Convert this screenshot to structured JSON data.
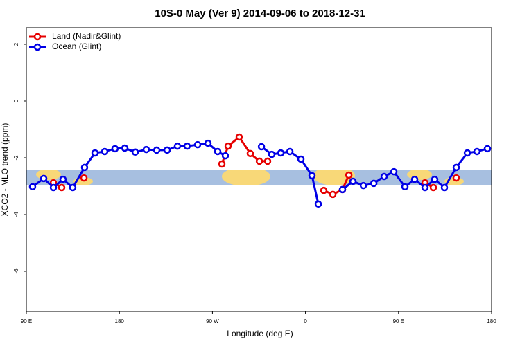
{
  "chart_data": {
    "type": "line",
    "title": "10S-0 May (Ver 9)   2014-09-06 to 2018-12-31",
    "x_label": "Longitude (deg E)",
    "y_label": "XCO2 - MLO trend (ppm)",
    "xlim": [
      90,
      540
    ],
    "ylim": [
      -7.415,
      2.585
    ],
    "xticks": [
      {
        "value": 90,
        "label": "90 E"
      },
      {
        "value": 180,
        "label": "180"
      },
      {
        "value": 270,
        "label": "90 W"
      },
      {
        "value": 360,
        "label": "0"
      },
      {
        "value": 450,
        "label": "90 E"
      },
      {
        "value": 540,
        "label": "180"
      }
    ],
    "yticks": [
      2,
      0,
      -2,
      -4,
      -6
    ],
    "legend": "top-left",
    "series": [
      {
        "name": "Land (Nadir&Glint)",
        "color": "#e60000",
        "x": [
          116.2,
          124.2,
          null,
          145.7,
          null,
          279.1,
          285.2,
          295.9,
          306.6,
          315.4,
          323.4,
          null,
          377.7,
          386.5,
          395.8,
          401.9,
          null,
          475.6,
          483.7,
          null,
          505.8
        ],
        "values": [
          -2.88,
          -3.05,
          null,
          -2.71,
          null,
          -2.22,
          -1.59,
          -1.27,
          -1.85,
          -2.12,
          -2.12,
          null,
          -3.15,
          -3.29,
          -3.12,
          -2.61,
          null,
          -2.88,
          -3.05,
          null,
          -2.71
        ]
      },
      {
        "name": "Ocean (Glint)",
        "color": "#0000e6",
        "x": [
          96,
          106.8,
          116.2,
          125.5,
          134.9,
          146.3,
          156.4,
          165.8,
          175.8,
          185.2,
          195.3,
          206,
          216.1,
          226.2,
          236.2,
          245.6,
          255.7,
          265.7,
          275.1,
          282.5,
          null,
          317.4,
          327.4,
          336.1,
          344.9,
          355.6,
          366.3,
          372.4,
          null,
          395.8,
          405.9,
          416,
          426.1,
          436.1,
          445.5,
          456.2,
          465.6,
          475.6,
          485,
          494.4,
          505.8,
          516.6,
          525.9,
          536
        ],
        "values": [
          -3.02,
          -2.73,
          -3.05,
          -2.76,
          -3.05,
          -2.34,
          -1.83,
          -1.78,
          -1.68,
          -1.66,
          -1.8,
          -1.71,
          -1.73,
          -1.73,
          -1.59,
          -1.59,
          -1.54,
          -1.49,
          -1.78,
          -1.93,
          null,
          -1.61,
          -1.88,
          -1.83,
          -1.78,
          -2.05,
          -2.63,
          -3.63,
          null,
          -3.12,
          -2.83,
          -2.98,
          -2.9,
          -2.66,
          -2.49,
          -3.02,
          -2.76,
          -3.05,
          -2.76,
          -3.05,
          -2.34,
          -1.83,
          -1.78,
          -1.68
        ]
      }
    ]
  }
}
